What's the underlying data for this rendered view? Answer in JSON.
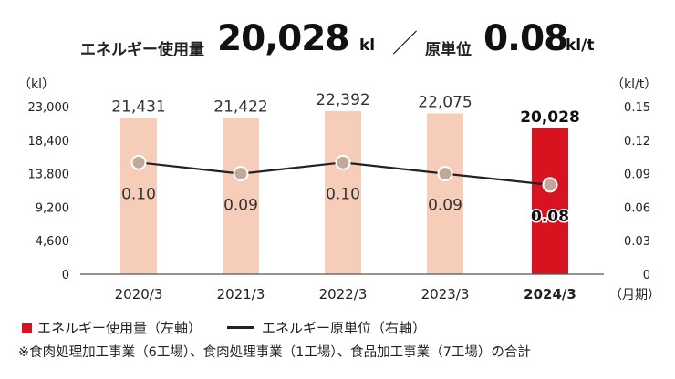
{
  "headline": {
    "energy_label": "エネルギー使用量",
    "energy_value": "20,028",
    "energy_unit": "kl",
    "separator": "／",
    "intensity_label": "原単位",
    "intensity_value": "0.08",
    "intensity_unit": "kl/t"
  },
  "colors": {
    "bar_past": "#f6cdb9",
    "bar_current": "#d9121f",
    "line": "#222222",
    "marker_fill": "#c2a89a",
    "marker_stroke": "#ffffff"
  },
  "chart_data": {
    "type": "bar+line",
    "categories": [
      "2020/3",
      "2021/3",
      "2022/3",
      "2023/3",
      "2024/3"
    ],
    "highlight_category": "2024/3",
    "left_axis": {
      "unit_label": "（kl）",
      "ticks": [
        "23,000",
        "18,400",
        "13,800",
        "9,200",
        "4,600",
        "0"
      ],
      "ylim": [
        0,
        23000
      ]
    },
    "right_axis": {
      "unit_label": "（kl/t）",
      "ticks": [
        "0.15",
        "0.12",
        "0.09",
        "0.06",
        "0.03",
        "0"
      ],
      "ylim": [
        0,
        0.15
      ]
    },
    "x_unit_label": "（月期）",
    "series": [
      {
        "name": "エネルギー使用量（左軸）",
        "type": "bar",
        "axis": "left",
        "values": [
          21431,
          21422,
          22392,
          22075,
          20028
        ],
        "labels": [
          "21,431",
          "21,422",
          "22,392",
          "22,075",
          "20,028"
        ]
      },
      {
        "name": "エネルギー原単位（右軸）",
        "type": "line",
        "axis": "right",
        "values": [
          0.1,
          0.09,
          0.1,
          0.09,
          0.08
        ],
        "labels": [
          "0.10",
          "0.09",
          "0.10",
          "0.09",
          "0.08"
        ]
      }
    ]
  },
  "legend": {
    "bar_label": "エネルギー使用量（左軸）",
    "line_label": "エネルギー原単位（右軸）"
  },
  "note": "※食肉処理加工事業（6工場）、食肉処理事業（1工場）、食品加工事業（7工場）の合計"
}
